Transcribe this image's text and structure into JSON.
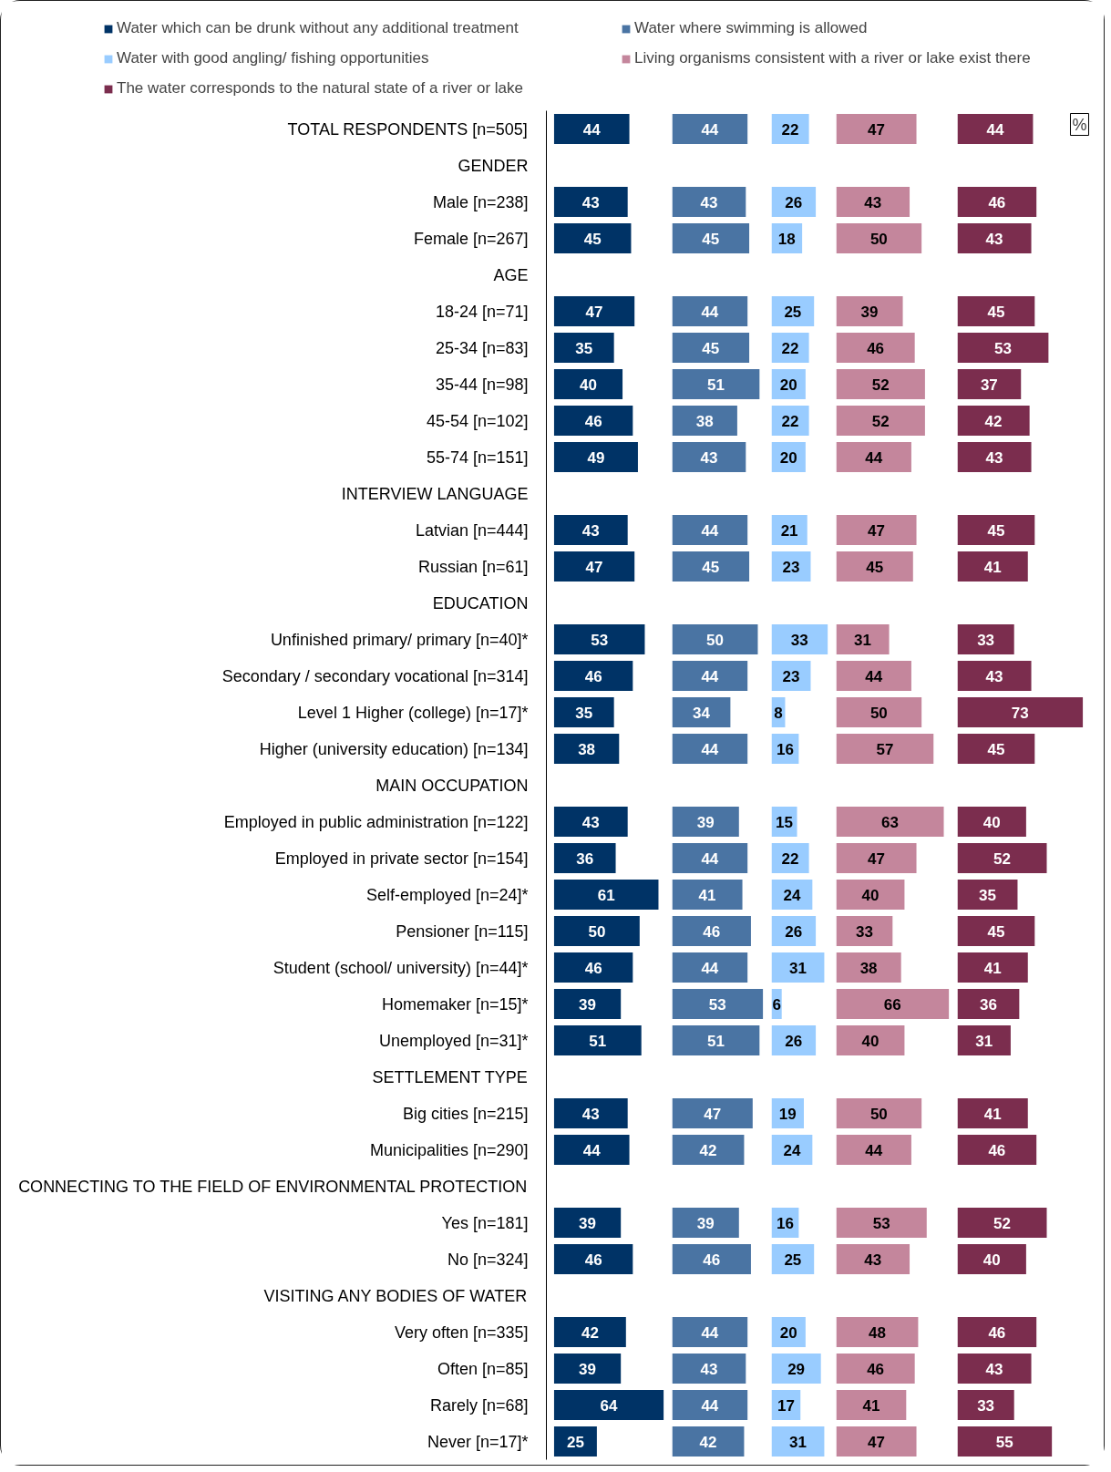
{
  "chart_data": [
    {
      "type": "bar",
      "orientation": "horizontal",
      "data_labels": true,
      "legend": "top",
      "tick_labels": "y",
      "categories": [
        "TOTAL RESPONDENTS [n=505]",
        "GENDER",
        "Male [n=238]",
        "Female [n=267]",
        "AGE",
        "18-24 [n=71]",
        "25-34 [n=83]",
        "35-44 [n=98]",
        "45-54 [n=102]",
        "55-74 [n=151]",
        "INTERVIEW LANGUAGE",
        "Latvian [n=444]",
        "Russian [n=61]",
        "EDUCATION",
        "Unfinished primary/ primary [n=40]*",
        "Secondary / secondary vocational [n=314]",
        "Level 1 Higher (college) [n=17]*",
        "Higher (university education) [n=134]",
        "MAIN OCCUPATION",
        "Employed in public administration [n=122]",
        "Employed in private sector [n=154]",
        "Self-employed [n=24]*",
        "Pensioner [n=115]",
        "Student (school/ university) [n=44]*",
        "Homemaker [n=15]*",
        "Unemployed [n=31]*",
        "SETTLEMENT TYPE",
        "Big cities [n=215]",
        "Municipalities [n=290]",
        "CONNECTING TO THE FIELD OF ENVIRONMENTAL PROTECTION",
        "Yes [n=181]",
        "No [n=324]",
        "VISITING ANY BODIES OF WATER",
        "Very often [n=335]",
        "Often [n=85]",
        "Rarely [n=68]",
        "Never [n=17]*"
      ],
      "series": [
        {
          "name": "Water which can be drunk without any additional treatment",
          "color": "#003366",
          "values": [
            44,
            null,
            43,
            45,
            null,
            47,
            35,
            40,
            46,
            49,
            null,
            43,
            47,
            null,
            53,
            46,
            35,
            38,
            null,
            43,
            36,
            61,
            50,
            46,
            39,
            51,
            null,
            43,
            44,
            null,
            39,
            46,
            null,
            42,
            39,
            64,
            25
          ]
        }
      ]
    },
    {
      "type": "bar",
      "orientation": "horizontal",
      "data_labels": true,
      "legend": "top",
      "tick_labels": false,
      "categories": [
        "TOTAL RESPONDENTS [n=505]",
        "GENDER",
        "Male [n=238]",
        "Female [n=267]",
        "AGE",
        "18-24 [n=71]",
        "25-34 [n=83]",
        "35-44 [n=98]",
        "45-54 [n=102]",
        "55-74 [n=151]",
        "INTERVIEW LANGUAGE",
        "Latvian [n=444]",
        "Russian [n=61]",
        "EDUCATION",
        "Unfinished primary/ primary [n=40]*",
        "Secondary / secondary vocational [n=314]",
        "Level 1 Higher (college) [n=17]*",
        "Higher (university education) [n=134]",
        "MAIN OCCUPATION",
        "Employed in public administration [n=122]",
        "Employed in private sector [n=154]",
        "Self-employed [n=24]*",
        "Pensioner [n=115]",
        "Student (school/ university) [n=44]*",
        "Homemaker [n=15]*",
        "Unemployed [n=31]*",
        "SETTLEMENT TYPE",
        "Big cities [n=215]",
        "Municipalities [n=290]",
        "CONNECTING TO THE FIELD OF ENVIRONMENTAL PROTECTION",
        "Yes [n=181]",
        "No [n=324]",
        "VISITING ANY BODIES OF WATER",
        "Very often [n=335]",
        "Often [n=85]",
        "Rarely [n=68]",
        "Never [n=17]*"
      ],
      "series": [
        {
          "name": "Water where swimming is allowed",
          "color": "#4a74a3",
          "values": [
            44,
            null,
            43,
            45,
            null,
            44,
            45,
            51,
            38,
            43,
            null,
            44,
            45,
            null,
            50,
            44,
            34,
            44,
            null,
            39,
            44,
            41,
            46,
            44,
            53,
            51,
            null,
            47,
            42,
            null,
            39,
            46,
            null,
            44,
            43,
            44,
            42
          ]
        }
      ]
    },
    {
      "type": "bar",
      "orientation": "horizontal",
      "data_labels": true,
      "legend": "top",
      "tick_labels": false,
      "categories": [
        "TOTAL RESPONDENTS [n=505]",
        "GENDER",
        "Male [n=238]",
        "Female [n=267]",
        "AGE",
        "18-24 [n=71]",
        "25-34 [n=83]",
        "35-44 [n=98]",
        "45-54 [n=102]",
        "55-74 [n=151]",
        "INTERVIEW LANGUAGE",
        "Latvian [n=444]",
        "Russian [n=61]",
        "EDUCATION",
        "Unfinished primary/ primary [n=40]*",
        "Secondary / secondary vocational [n=314]",
        "Level 1 Higher (college) [n=17]*",
        "Higher (university education) [n=134]",
        "MAIN OCCUPATION",
        "Employed in public administration [n=122]",
        "Employed in private sector [n=154]",
        "Self-employed [n=24]*",
        "Pensioner [n=115]",
        "Student (school/ university) [n=44]*",
        "Homemaker [n=15]*",
        "Unemployed [n=31]*",
        "SETTLEMENT TYPE",
        "Big cities [n=215]",
        "Municipalities [n=290]",
        "CONNECTING TO THE FIELD OF ENVIRONMENTAL PROTECTION",
        "Yes [n=181]",
        "No [n=324]",
        "VISITING ANY BODIES OF WATER",
        "Very often [n=335]",
        "Often [n=85]",
        "Rarely [n=68]",
        "Never [n=17]*"
      ],
      "series": [
        {
          "name": "Water with good angling/ fishing opportunities",
          "color": "#99ccff",
          "values": [
            22,
            null,
            26,
            18,
            null,
            25,
            22,
            20,
            22,
            20,
            null,
            21,
            23,
            null,
            33,
            23,
            8,
            16,
            null,
            15,
            22,
            24,
            26,
            31,
            6,
            26,
            null,
            19,
            24,
            null,
            16,
            25,
            null,
            20,
            29,
            17,
            31
          ]
        }
      ]
    },
    {
      "type": "bar",
      "orientation": "horizontal",
      "data_labels": true,
      "legend": "top",
      "tick_labels": false,
      "categories": [
        "TOTAL RESPONDENTS [n=505]",
        "GENDER",
        "Male [n=238]",
        "Female [n=267]",
        "AGE",
        "18-24 [n=71]",
        "25-34 [n=83]",
        "35-44 [n=98]",
        "45-54 [n=102]",
        "55-74 [n=151]",
        "INTERVIEW LANGUAGE",
        "Latvian [n=444]",
        "Russian [n=61]",
        "EDUCATION",
        "Unfinished primary/ primary [n=40]*",
        "Secondary / secondary vocational [n=314]",
        "Level 1 Higher (college) [n=17]*",
        "Higher (university education) [n=134]",
        "MAIN OCCUPATION",
        "Employed in public administration [n=122]",
        "Employed in private sector [n=154]",
        "Self-employed [n=24]*",
        "Pensioner [n=115]",
        "Student (school/ university) [n=44]*",
        "Homemaker [n=15]*",
        "Unemployed [n=31]*",
        "SETTLEMENT TYPE",
        "Big cities [n=215]",
        "Municipalities [n=290]",
        "CONNECTING TO THE FIELD OF ENVIRONMENTAL PROTECTION",
        "Yes [n=181]",
        "No [n=324]",
        "VISITING ANY BODIES OF WATER",
        "Very often [n=335]",
        "Often [n=85]",
        "Rarely [n=68]",
        "Never [n=17]*"
      ],
      "series": [
        {
          "name": "Living organisms consistent with a river or lake exist there",
          "color": "#c4869c",
          "values": [
            47,
            null,
            43,
            50,
            null,
            39,
            46,
            52,
            52,
            44,
            null,
            47,
            45,
            null,
            31,
            44,
            50,
            57,
            null,
            63,
            47,
            40,
            33,
            38,
            66,
            40,
            null,
            50,
            44,
            null,
            53,
            43,
            null,
            48,
            46,
            41,
            47
          ]
        }
      ]
    },
    {
      "type": "bar",
      "orientation": "horizontal",
      "data_labels": true,
      "legend": "top",
      "tick_labels": false,
      "annotations": [
        "%"
      ],
      "categories": [
        "TOTAL RESPONDENTS [n=505]",
        "GENDER",
        "Male [n=238]",
        "Female [n=267]",
        "AGE",
        "18-24 [n=71]",
        "25-34 [n=83]",
        "35-44 [n=98]",
        "45-54 [n=102]",
        "55-74 [n=151]",
        "INTERVIEW LANGUAGE",
        "Latvian [n=444]",
        "Russian [n=61]",
        "EDUCATION",
        "Unfinished primary/ primary [n=40]*",
        "Secondary / secondary vocational [n=314]",
        "Level 1 Higher (college) [n=17]*",
        "Higher (university education) [n=134]",
        "MAIN OCCUPATION",
        "Employed in public administration [n=122]",
        "Employed in private sector [n=154]",
        "Self-employed [n=24]*",
        "Pensioner [n=115]",
        "Student (school/ university) [n=44]*",
        "Homemaker [n=15]*",
        "Unemployed [n=31]*",
        "SETTLEMENT TYPE",
        "Big cities [n=215]",
        "Municipalities [n=290]",
        "CONNECTING TO THE FIELD OF ENVIRONMENTAL PROTECTION",
        "Yes [n=181]",
        "No [n=324]",
        "VISITING ANY BODIES OF WATER",
        "Very often [n=335]",
        "Often [n=85]",
        "Rarely [n=68]",
        "Never [n=17]*"
      ],
      "series": [
        {
          "name": "The water corresponds to the natural state of a river or lake",
          "color": "#7b2d4e",
          "values": [
            44,
            null,
            46,
            43,
            null,
            45,
            53,
            37,
            42,
            43,
            null,
            45,
            41,
            null,
            33,
            43,
            73,
            45,
            null,
            40,
            52,
            35,
            45,
            41,
            36,
            31,
            null,
            41,
            46,
            null,
            52,
            40,
            null,
            46,
            43,
            33,
            55
          ]
        }
      ]
    }
  ]
}
